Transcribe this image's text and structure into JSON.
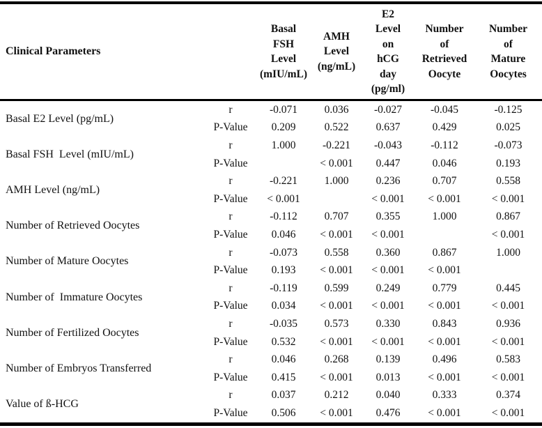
{
  "page": {
    "background_color": "#ffffff",
    "text_color": "#111111",
    "rule_color": "#000000"
  },
  "table": {
    "corner_label": "Clinical Parameters",
    "column_headers": [
      "Basal\nFSH\nLevel\n(mIU/mL)",
      "AMH\nLevel\n(ng/mL)",
      "E2\nLevel\non\nhCG\nday\n(pg/ml)",
      "Number\nof\nRetrieved\nOocyte",
      "Number\nof\nMature\nOocytes"
    ],
    "stat_row_labels": {
      "r": "r",
      "p": "P-Value"
    },
    "rows": [
      {
        "label": "Basal E2 Level (pg/mL)",
        "r": [
          "-0.071",
          "0.036",
          "-0.027",
          "-0.045",
          "-0.125"
        ],
        "p": [
          "0.209",
          "0.522",
          "0.637",
          "0.429",
          "0.025"
        ]
      },
      {
        "label": "Basal FSH  Level (mIU/mL)",
        "r": [
          "1.000",
          "-0.221",
          "-0.043",
          "-0.112",
          "-0.073"
        ],
        "p": [
          "",
          "< 0.001",
          "0.447",
          "0.046",
          "0.193"
        ]
      },
      {
        "label": "AMH Level (ng/mL)",
        "r": [
          "-0.221",
          "1.000",
          "0.236",
          "0.707",
          "0.558"
        ],
        "p": [
          "< 0.001",
          "",
          "< 0.001",
          "< 0.001",
          "< 0.001"
        ]
      },
      {
        "label": "Number of Retrieved Oocytes",
        "r": [
          "-0.112",
          "0.707",
          "0.355",
          "1.000",
          "0.867"
        ],
        "p": [
          "0.046",
          "< 0.001",
          "< 0.001",
          "",
          "< 0.001"
        ]
      },
      {
        "label": "Number of Mature Oocytes",
        "r": [
          "-0.073",
          "0.558",
          "0.360",
          "0.867",
          "1.000"
        ],
        "p": [
          "0.193",
          "< 0.001",
          "< 0.001",
          "< 0.001",
          ""
        ]
      },
      {
        "label": "Number of  Immature Oocytes",
        "r": [
          "-0.119",
          "0.599",
          "0.249",
          "0.779",
          "0.445"
        ],
        "p": [
          "0.034",
          "< 0.001",
          "< 0.001",
          "< 0.001",
          "< 0.001"
        ]
      },
      {
        "label": "Number of Fertilized Oocytes",
        "r": [
          "-0.035",
          "0.573",
          "0.330",
          "0.843",
          "0.936"
        ],
        "p": [
          "0.532",
          "< 0.001",
          "< 0.001",
          "< 0.001",
          "< 0.001"
        ]
      },
      {
        "label": "Number of Embryos Transferred",
        "r": [
          "0.046",
          "0.268",
          "0.139",
          "0.496",
          "0.583"
        ],
        "p": [
          "0.415",
          "< 0.001",
          "0.013",
          "< 0.001",
          "< 0.001"
        ]
      },
      {
        "label": "Value of ß-HCG",
        "r": [
          "0.037",
          "0.212",
          "0.040",
          "0.333",
          "0.374"
        ],
        "p": [
          "0.506",
          "< 0.001",
          "0.476",
          "< 0.001",
          "< 0.001"
        ]
      }
    ]
  }
}
